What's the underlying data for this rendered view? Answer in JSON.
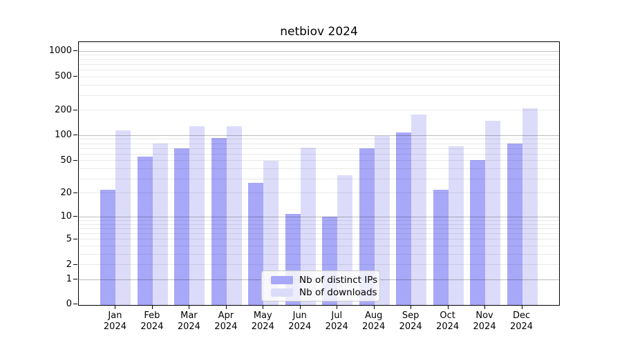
{
  "chart_data": {
    "type": "bar",
    "title": "netbiov 2024",
    "categories": [
      "Jan",
      "Feb",
      "Mar",
      "Apr",
      "May",
      "Jun",
      "Jul",
      "Aug",
      "Sep",
      "Oct",
      "Nov",
      "Dec"
    ],
    "category_year": "2024",
    "series": [
      {
        "name": "Nb of distinct IPs",
        "color": "#a8a8f8",
        "values": [
          22,
          56,
          70,
          94,
          27,
          11,
          10,
          70,
          108,
          22,
          51,
          80
        ]
      },
      {
        "name": "Nb of downloads",
        "color": "#dcdcfa",
        "values": [
          115,
          80,
          128,
          128,
          50,
          71,
          33,
          98,
          178,
          75,
          150,
          210
        ]
      }
    ],
    "yscale": "log1p",
    "yticks": [
      0,
      1,
      2,
      5,
      10,
      20,
      50,
      100,
      200,
      500,
      1000
    ],
    "major_gridlines": [
      1,
      10,
      100,
      1000
    ],
    "ylim": [
      0,
      1285
    ],
    "grid": true,
    "legend_position": "bottom-center"
  }
}
